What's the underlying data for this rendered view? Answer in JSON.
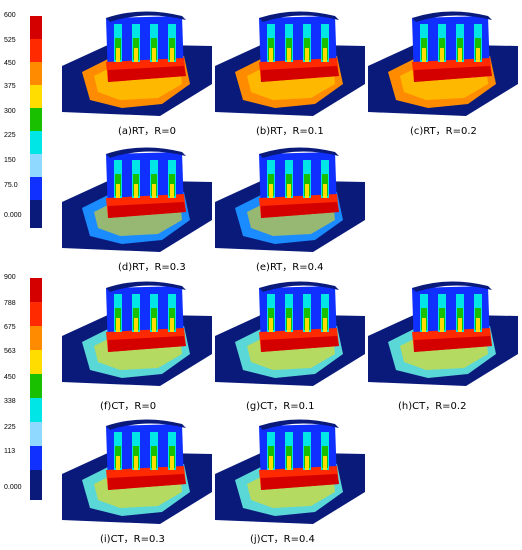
{
  "colorbars": [
    {
      "labels": [
        "600",
        "525",
        "450",
        "375",
        "300",
        "225",
        "150",
        "75.0",
        "0.000"
      ],
      "colors": [
        "#d40000",
        "#ff2a00",
        "#ff8c00",
        "#ffdd00",
        "#18c000",
        "#00e5e5",
        "#8fd8ff",
        "#1030ff",
        "#0a1a7a"
      ]
    },
    {
      "labels": [
        "900",
        "788",
        "675",
        "563",
        "450",
        "338",
        "225",
        "113",
        "0.000"
      ],
      "colors": [
        "#d40000",
        "#ff2a00",
        "#ff8c00",
        "#ffdd00",
        "#18c000",
        "#00e5e5",
        "#8fd8ff",
        "#1030ff",
        "#0a1a7a"
      ]
    }
  ],
  "panels": [
    {
      "caption": "(a)RT，R=0",
      "base": "#ff8c00"
    },
    {
      "caption": "(b)RT，R=0.1",
      "base": "#ff8c00"
    },
    {
      "caption": "(c)RT，R=0.2",
      "base": "#ff8c00"
    },
    {
      "caption": "(d)RT，R=0.3",
      "base": "#1a8cff"
    },
    {
      "caption": "(e)RT，R=0.4",
      "base": "#1a8cff"
    },
    {
      "caption": "(f)CT，R=0",
      "base": "#5ad8d8"
    },
    {
      "caption": "(g)CT，R=0.1",
      "base": "#5ad8d8"
    },
    {
      "caption": "(h)CT，R=0.2",
      "base": "#5ad8d8"
    },
    {
      "caption": "(i)CT，R=0.3",
      "base": "#5ad8d8"
    },
    {
      "caption": "(j)CT，R=0.4",
      "base": "#5ad8d8"
    }
  ]
}
